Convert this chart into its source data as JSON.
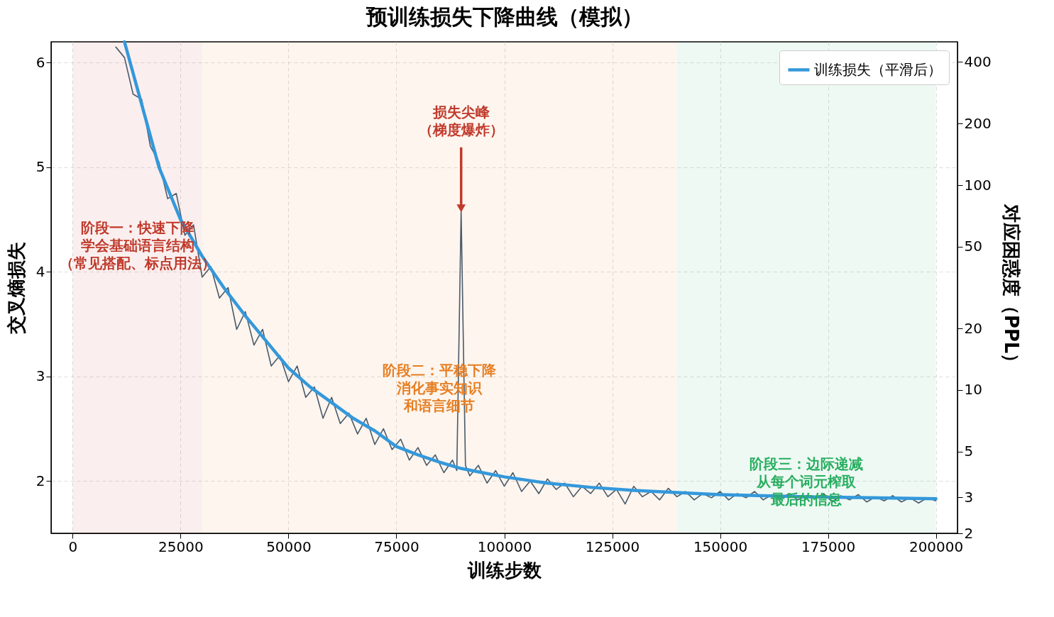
{
  "chart_data": {
    "type": "line",
    "title": "预训练损失下降曲线（模拟）",
    "xlabel": "训练步数",
    "ylabel": "交叉熵损失",
    "y2label": "对应困惑度（PPL）",
    "xlim": [
      -5000,
      205000
    ],
    "xticks": [
      0,
      25000,
      50000,
      75000,
      100000,
      125000,
      150000,
      175000,
      200000
    ],
    "ylim": [
      1.5,
      6.2
    ],
    "yticks": [
      2,
      3,
      4,
      5,
      6
    ],
    "y2lim": [
      2,
      500
    ],
    "y2ticks": [
      2,
      3,
      5,
      10,
      20,
      50,
      100,
      200,
      400
    ],
    "log": "y2",
    "grid": true,
    "legend": "top right",
    "bands": [
      {
        "axis": "x",
        "from": 0,
        "to": 30000,
        "label": "阶段一：快速下降学会基础语言结构（常见搭配、标点用法）",
        "color": "#c0392b"
      },
      {
        "axis": "x",
        "from": 30000,
        "to": 140000,
        "label": "阶段二：平稳下降消化事实知识和语言细节",
        "color": "#e67e22"
      },
      {
        "axis": "x",
        "from": 140000,
        "to": 200000,
        "label": "阶段三：边际递减从每个词元榨取最后的信息",
        "color": "#27ae60"
      }
    ],
    "annotations": [
      {
        "text": "损失尖峰（梯度爆炸）",
        "x": 90000,
        "y": 4.58
      }
    ],
    "series": [
      {
        "color": "#4a5a6a",
        "x": [
          10000,
          12000,
          14000,
          16000,
          18000,
          20000,
          22000,
          24000,
          26000,
          28000,
          30000,
          32000,
          34000,
          36000,
          38000,
          40000,
          42000,
          44000,
          46000,
          48000,
          50000,
          52000,
          54000,
          56000,
          58000,
          60000,
          62000,
          64000,
          66000,
          68000,
          70000,
          72000,
          74000,
          76000,
          78000,
          80000,
          82000,
          84000,
          86000,
          88000,
          89000,
          90000,
          91000,
          92000,
          94000,
          96000,
          98000,
          100000,
          102000,
          104000,
          106000,
          108000,
          110000,
          112000,
          114000,
          116000,
          118000,
          120000,
          122000,
          124000,
          126000,
          128000,
          130000,
          132000,
          134000,
          136000,
          138000,
          140000,
          142000,
          144000,
          146000,
          148000,
          150000,
          152000,
          154000,
          156000,
          158000,
          160000,
          162000,
          164000,
          166000,
          168000,
          170000,
          172000,
          174000,
          176000,
          178000,
          180000,
          182000,
          184000,
          186000,
          188000,
          190000,
          192000,
          194000,
          196000,
          198000,
          200000
        ],
        "values": [
          6.15,
          6.05,
          5.7,
          5.65,
          5.2,
          5.05,
          4.7,
          4.75,
          4.35,
          4.45,
          3.95,
          4.05,
          3.75,
          3.85,
          3.45,
          3.62,
          3.3,
          3.45,
          3.1,
          3.2,
          2.95,
          3.1,
          2.8,
          2.9,
          2.6,
          2.8,
          2.55,
          2.65,
          2.45,
          2.6,
          2.35,
          2.5,
          2.3,
          2.4,
          2.2,
          2.32,
          2.15,
          2.25,
          2.08,
          2.2,
          2.1,
          4.58,
          2.15,
          2.05,
          2.15,
          1.98,
          2.1,
          1.95,
          2.08,
          1.9,
          2.0,
          1.88,
          2.02,
          1.92,
          1.98,
          1.85,
          1.95,
          1.88,
          1.98,
          1.85,
          1.92,
          1.78,
          1.95,
          1.85,
          1.9,
          1.82,
          1.93,
          1.85,
          1.9,
          1.82,
          1.88,
          1.84,
          1.9,
          1.82,
          1.88,
          1.84,
          1.9,
          1.82,
          1.87,
          1.83,
          1.88,
          1.82,
          1.86,
          1.83,
          1.88,
          1.8,
          1.86,
          1.82,
          1.87,
          1.8,
          1.85,
          1.81,
          1.86,
          1.8,
          1.84,
          1.79,
          1.84,
          1.81
        ]
      },
      {
        "name": "训练损失（平滑后）",
        "color": "#3498db",
        "x": [
          12000,
          15000,
          20000,
          25000,
          30000,
          35000,
          40000,
          45000,
          50000,
          55000,
          60000,
          65000,
          70000,
          75000,
          80000,
          85000,
          90000,
          95000,
          100000,
          110000,
          120000,
          130000,
          140000,
          150000,
          170000,
          200000
        ],
        "values": [
          6.2,
          5.75,
          5.0,
          4.5,
          4.15,
          3.85,
          3.58,
          3.33,
          3.08,
          2.9,
          2.75,
          2.6,
          2.48,
          2.33,
          2.25,
          2.18,
          2.12,
          2.08,
          2.04,
          1.98,
          1.94,
          1.91,
          1.89,
          1.87,
          1.85,
          1.83
        ]
      }
    ]
  }
}
